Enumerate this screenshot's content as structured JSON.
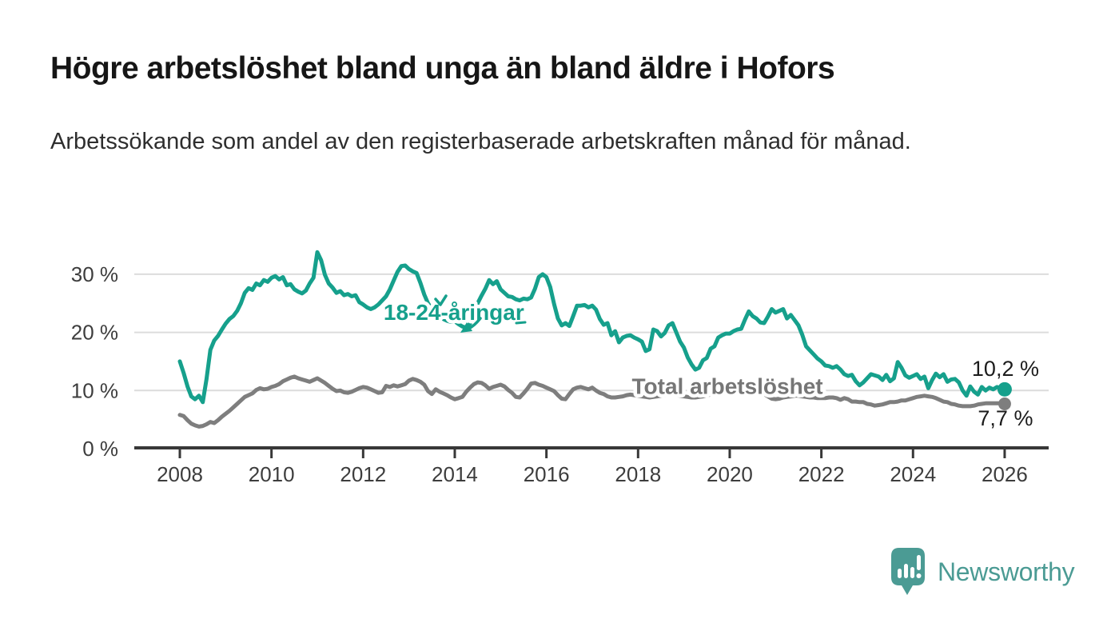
{
  "header": {
    "title": "Högre arbetslöshet bland unga än bland äldre i Hofors",
    "subtitle": "Arbetssökande som andel av den registerbaserade arbetskraften månad för månad."
  },
  "branding": {
    "logo_text": "Newsworthy",
    "logo_color": "#4b9b94",
    "logo_icon": "speech-bubble-with-bar-chart-and-exclamation"
  },
  "colors": {
    "young_series": "#16a08c",
    "total_series": "#7e7e7e",
    "total_label_text": "#767676",
    "end_value_text": "#1c1c1c",
    "axis": "#383838",
    "axis_text": "#3d3d3d",
    "gridline": "#dcdcdc",
    "background": "#ffffff"
  },
  "chart_data": {
    "type": "line",
    "title": "Högre arbetslöshet bland unga än bland äldre i Hofors",
    "xlabel": "",
    "ylabel": "Arbetssökande som andel av den registerbaserade arbetskraften",
    "x_unit": "month",
    "x_start": "2008-01",
    "x_end": "2026-01",
    "points_per_year": 12,
    "x_tick_years": [
      2008,
      2010,
      2012,
      2014,
      2016,
      2018,
      2020,
      2022,
      2024,
      2026
    ],
    "y_tick_values": [
      0,
      10,
      20,
      30
    ],
    "y_tick_labels": [
      "0 %",
      "10 %",
      "20 %",
      "30 %"
    ],
    "ylim": [
      0,
      35
    ],
    "grid": "horizontal",
    "legend_position": "inline",
    "series": [
      {
        "name": "18-24-åringar",
        "color": "#16a08c",
        "line_width": 5,
        "end_label": "10,2 %",
        "last_value": 10.2,
        "label_year": 2013.98,
        "label_value": 23.5,
        "values": [
          15.0,
          13.0,
          10.7,
          9.0,
          8.5,
          9.1,
          8.0,
          12.0,
          17.0,
          18.6,
          19.4,
          20.5,
          21.5,
          22.3,
          22.8,
          23.7,
          25.0,
          26.8,
          27.6,
          27.3,
          28.4,
          28.1,
          29.0,
          28.7,
          29.4,
          29.7,
          29.1,
          29.5,
          28.1,
          28.3,
          27.4,
          27.0,
          26.7,
          27.2,
          28.4,
          29.4,
          33.8,
          32.4,
          29.9,
          28.4,
          27.7,
          26.8,
          27.1,
          26.4,
          26.6,
          26.2,
          26.4,
          25.2,
          24.8,
          24.3,
          24.0,
          24.3,
          24.8,
          25.5,
          26.2,
          27.4,
          28.9,
          30.4,
          31.4,
          31.5,
          30.9,
          30.5,
          30.2,
          28.5,
          26.5,
          25.0,
          24.0,
          23.2,
          22.6,
          22.3,
          22.0,
          21.8,
          21.9,
          21.4,
          21.0,
          20.8,
          21.5,
          23.0,
          25.0,
          26.3,
          27.5,
          29.0,
          28.3,
          28.8,
          27.4,
          26.8,
          26.2,
          26.1,
          25.7,
          25.5,
          25.8,
          25.7,
          26.0,
          27.5,
          29.5,
          30.0,
          29.5,
          27.8,
          24.9,
          22.4,
          21.2,
          21.6,
          21.1,
          22.8,
          24.6,
          24.6,
          24.7,
          24.3,
          24.6,
          23.9,
          22.3,
          21.3,
          21.6,
          19.5,
          20.2,
          18.3,
          19.1,
          19.4,
          19.5,
          19.1,
          18.8,
          18.4,
          16.8,
          17.1,
          20.5,
          20.2,
          19.3,
          19.9,
          21.2,
          21.6,
          20.0,
          18.4,
          17.4,
          15.7,
          14.5,
          13.6,
          13.9,
          15.2,
          15.6,
          17.2,
          17.6,
          19.1,
          19.5,
          19.8,
          19.8,
          20.2,
          20.5,
          20.6,
          22.2,
          23.6,
          22.8,
          22.4,
          21.7,
          21.6,
          22.7,
          24.0,
          23.4,
          23.7,
          24.0,
          22.4,
          23.0,
          22.1,
          21.2,
          19.6,
          17.6,
          16.9,
          16.2,
          15.5,
          15.0,
          14.3,
          14.2,
          13.9,
          14.2,
          13.6,
          12.8,
          12.5,
          12.7,
          11.6,
          10.9,
          11.4,
          12.1,
          12.8,
          12.6,
          12.4,
          11.8,
          12.7,
          11.6,
          12.1,
          14.9,
          13.9,
          12.6,
          12.2,
          12.5,
          12.8,
          12.0,
          12.4,
          10.4,
          11.8,
          12.9,
          12.3,
          12.8,
          11.5,
          11.9,
          12.0,
          11.4,
          10.0,
          9.1,
          10.7,
          9.8,
          9.3,
          10.6,
          10.0,
          10.5,
          10.2,
          10.6,
          10.3,
          10.2
        ]
      },
      {
        "name": "Total arbetslöshet",
        "color": "#7e7e7e",
        "line_width": 5,
        "end_label": "7,7 %",
        "last_value": 7.7,
        "label_year": 2019.95,
        "label_value": 10.8,
        "values": [
          5.8,
          5.6,
          4.9,
          4.3,
          4.0,
          3.8,
          3.9,
          4.2,
          4.6,
          4.4,
          4.9,
          5.5,
          6.0,
          6.5,
          7.1,
          7.7,
          8.3,
          8.9,
          9.2,
          9.5,
          10.1,
          10.4,
          10.2,
          10.3,
          10.6,
          10.8,
          11.1,
          11.6,
          11.9,
          12.2,
          12.4,
          12.1,
          11.9,
          11.7,
          11.5,
          11.8,
          12.1,
          11.7,
          11.3,
          10.8,
          10.3,
          9.9,
          10.0,
          9.7,
          9.6,
          9.8,
          10.1,
          10.4,
          10.6,
          10.5,
          10.2,
          9.9,
          9.6,
          9.7,
          10.8,
          10.6,
          10.9,
          10.7,
          10.9,
          11.1,
          11.7,
          12.0,
          11.8,
          11.5,
          11.0,
          9.9,
          9.4,
          10.2,
          9.8,
          9.5,
          9.2,
          8.8,
          8.5,
          8.7,
          8.9,
          9.8,
          10.5,
          11.1,
          11.4,
          11.3,
          10.9,
          10.3,
          10.6,
          10.8,
          11.0,
          10.7,
          10.1,
          9.6,
          8.9,
          8.8,
          9.5,
          10.3,
          11.2,
          11.3,
          11.0,
          10.8,
          10.5,
          10.2,
          9.9,
          9.2,
          8.6,
          8.5,
          9.4,
          10.2,
          10.5,
          10.6,
          10.4,
          10.2,
          10.5,
          10.0,
          9.6,
          9.4,
          9.0,
          8.8,
          8.8,
          8.9,
          9.0,
          9.2,
          9.3,
          9.2,
          9.1,
          9.0,
          8.9,
          8.8,
          8.9,
          9.0,
          9.1,
          9.2,
          9.3,
          9.4,
          9.2,
          9.1,
          9.0,
          8.9,
          8.8,
          8.8,
          8.9,
          9.0,
          9.2,
          9.3,
          9.5,
          9.6,
          9.6,
          9.5,
          9.6,
          9.8,
          10.0,
          10.2,
          10.3,
          10.2,
          10.0,
          9.8,
          9.6,
          9.4,
          9.0,
          8.6,
          8.5,
          8.6,
          8.8,
          8.9,
          9.0,
          9.1,
          9.1,
          9.0,
          8.9,
          8.8,
          8.8,
          8.7,
          8.7,
          8.7,
          8.8,
          8.8,
          8.7,
          8.4,
          8.7,
          8.5,
          8.1,
          8.1,
          8.0,
          8.0,
          7.7,
          7.6,
          7.4,
          7.5,
          7.6,
          7.8,
          8.0,
          8.0,
          8.1,
          8.3,
          8.3,
          8.5,
          8.7,
          8.9,
          9.0,
          9.1,
          9.0,
          8.9,
          8.7,
          8.4,
          8.1,
          8.0,
          7.7,
          7.6,
          7.4,
          7.3,
          7.3,
          7.3,
          7.4,
          7.6,
          7.7,
          7.8,
          7.8,
          7.8,
          7.8,
          7.8,
          7.7
        ]
      }
    ]
  }
}
